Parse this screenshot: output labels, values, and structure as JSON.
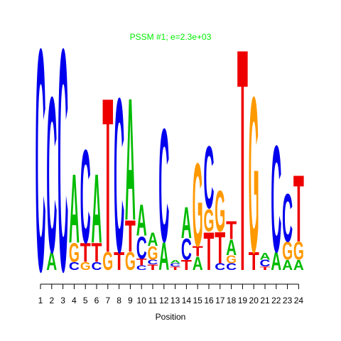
{
  "chart_data": {
    "type": "sequence-logo",
    "title": "PSSM #1; e=2.3e+03",
    "title_color": "#00ee00",
    "xlabel": "Position",
    "categories": [
      1,
      2,
      3,
      4,
      5,
      6,
      7,
      8,
      9,
      10,
      11,
      12,
      13,
      14,
      15,
      16,
      17,
      18,
      19,
      20,
      21,
      22,
      23,
      24
    ],
    "colors": {
      "A": "#00bb00",
      "C": "#0000ee",
      "G": "#ff9900",
      "T": "#ee0000"
    },
    "columns": [
      {
        "letters": [
          "C"
        ],
        "heights": [
          2.0
        ]
      },
      {
        "letters": [
          "A",
          "C"
        ],
        "heights": [
          0.16,
          1.4
        ]
      },
      {
        "letters": [
          "C"
        ],
        "heights": [
          2.0
        ]
      },
      {
        "letters": [
          "C",
          "G",
          "A"
        ],
        "heights": [
          0.07,
          0.17,
          0.62
        ]
      },
      {
        "letters": [
          "G",
          "T",
          "C"
        ],
        "heights": [
          0.07,
          0.17,
          0.84
        ]
      },
      {
        "letters": [
          "C",
          "T",
          "A"
        ],
        "heights": [
          0.07,
          0.17,
          0.62
        ]
      },
      {
        "letters": [
          "G",
          "T"
        ],
        "heights": [
          0.16,
          1.39
        ]
      },
      {
        "letters": [
          "T",
          "C"
        ],
        "heights": [
          0.16,
          1.39
        ]
      },
      {
        "letters": [
          "G",
          "T",
          "A"
        ],
        "heights": [
          0.16,
          0.28,
          1.1
        ]
      },
      {
        "letters": [
          "C",
          "T",
          "C",
          "A"
        ],
        "heights": [
          0.04,
          0.06,
          0.2,
          0.28
        ]
      },
      {
        "letters": [
          "T",
          "C",
          "G",
          "A"
        ],
        "heights": [
          0.05,
          0.04,
          0.12,
          0.12
        ]
      },
      {
        "letters": [
          "A",
          "C"
        ],
        "heights": [
          0.25,
          1.02
        ]
      },
      {
        "letters": [
          "T",
          "C",
          "A"
        ],
        "heights": [
          0.03,
          0.03,
          0.03
        ]
      },
      {
        "letters": [
          "T",
          "C",
          "A"
        ],
        "heights": [
          0.09,
          0.19,
          0.28
        ]
      },
      {
        "letters": [
          "A",
          "T",
          "G"
        ],
        "heights": [
          0.12,
          0.09,
          0.75
        ]
      },
      {
        "letters": [
          "T",
          "G",
          "C"
        ],
        "heights": [
          0.34,
          0.2,
          0.56
        ]
      },
      {
        "letters": [
          "C",
          "T",
          "G"
        ],
        "heights": [
          0.06,
          0.28,
          0.37
        ]
      },
      {
        "letters": [
          "C",
          "G",
          "A",
          "T"
        ],
        "heights": [
          0.06,
          0.07,
          0.14,
          0.16
        ]
      },
      {
        "letters": [
          "T"
        ],
        "heights": [
          2.0
        ]
      },
      {
        "letters": [
          "T",
          "G"
        ],
        "heights": [
          0.16,
          1.4
        ]
      },
      {
        "letters": [
          "T",
          "C",
          "A"
        ],
        "heights": [
          0.03,
          0.06,
          0.06
        ]
      },
      {
        "letters": [
          "A",
          "C"
        ],
        "heights": [
          0.16,
          0.96
        ]
      },
      {
        "letters": [
          "A",
          "G",
          "C"
        ],
        "heights": [
          0.09,
          0.16,
          0.43
        ]
      },
      {
        "letters": [
          "A",
          "G",
          "T"
        ],
        "heights": [
          0.09,
          0.16,
          0.6
        ]
      }
    ]
  }
}
